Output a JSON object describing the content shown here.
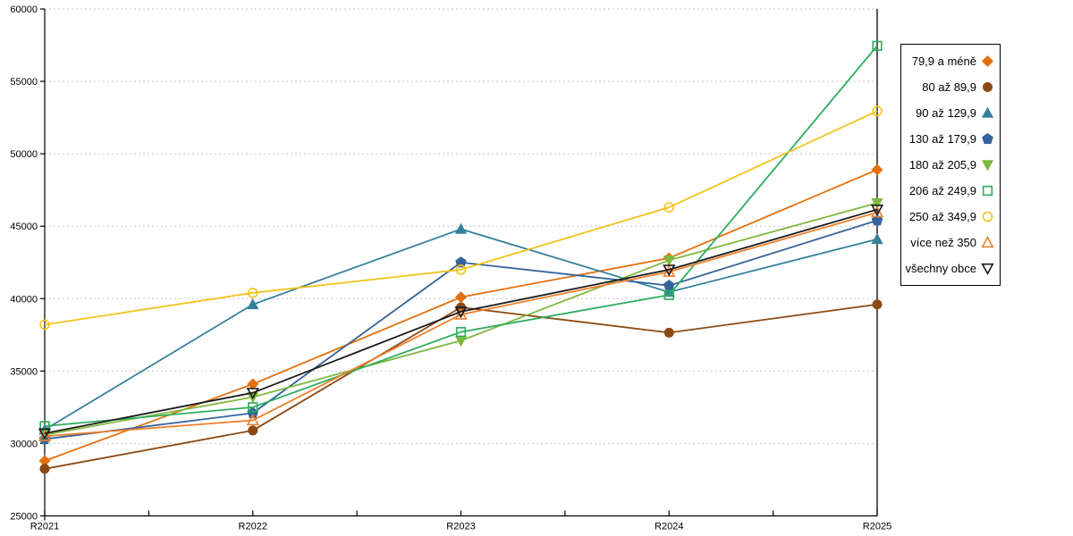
{
  "chart_data": {
    "type": "line",
    "title": "",
    "xlabel": "",
    "ylabel": "",
    "x_categories": [
      "R2021",
      "R2022",
      "R2023",
      "R2024",
      "R2025"
    ],
    "ylim": [
      25000,
      60000
    ],
    "ytick_step": 5000,
    "ytick_labels": [
      "25000",
      "30000",
      "35000",
      "40000",
      "45000",
      "50000",
      "55000",
      "60000"
    ],
    "grid": "horizontal-dashed",
    "x_minor_ticks": true,
    "legend_position": "right-box",
    "series": [
      {
        "name": "79,9 a méně",
        "marker": "diamond",
        "fill": "solid",
        "color": "#E2700F",
        "values": [
          28800,
          34100,
          40100,
          42800,
          48900
        ]
      },
      {
        "name": "80 až 89,9",
        "marker": "circle",
        "fill": "solid",
        "color": "#8B4A14",
        "values": [
          28250,
          30900,
          39400,
          37650,
          39600
        ]
      },
      {
        "name": "90 až 129,9",
        "marker": "triangle-up",
        "fill": "solid",
        "color": "#35809B",
        "values": [
          30950,
          39600,
          44800,
          40450,
          44100
        ]
      },
      {
        "name": "130 až 179,9",
        "marker": "pentagon",
        "fill": "solid",
        "color": "#35639C",
        "values": [
          30300,
          32100,
          42500,
          40900,
          45400
        ]
      },
      {
        "name": "180 až 205,9",
        "marker": "triangle-down",
        "fill": "solid",
        "color": "#7EB93F",
        "values": [
          30600,
          33200,
          37100,
          42650,
          46600
        ]
      },
      {
        "name": "206 až 249,9",
        "marker": "square",
        "fill": "open",
        "color": "#2EAC5E",
        "values": [
          31200,
          32500,
          37700,
          40250,
          57450
        ]
      },
      {
        "name": "250 až 349,9",
        "marker": "circle",
        "fill": "open",
        "color": "#F2C31B",
        "values": [
          38200,
          40400,
          42000,
          46300,
          52950
        ]
      },
      {
        "name": "více než 350",
        "marker": "triangle-up",
        "fill": "open",
        "color": "#EE7F2D",
        "values": [
          30500,
          31600,
          38900,
          41850,
          45950
        ]
      },
      {
        "name": "všechny obce",
        "marker": "triangle-down",
        "fill": "open",
        "color": "#1A1A1A",
        "values": [
          30700,
          33500,
          39100,
          42000,
          46150
        ]
      }
    ]
  },
  "colors": {
    "grid": "#C6C6C6",
    "axis": "#000000",
    "background": "#FFFFFF",
    "legend_border": "#000000"
  }
}
